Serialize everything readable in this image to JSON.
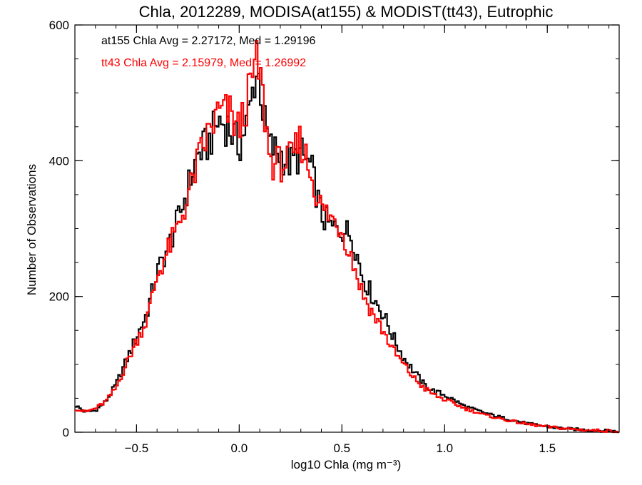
{
  "chart_data": {
    "type": "line",
    "title": "Chla, 2012289, MODISA(at155) & MODIST(tt43), Eutrophic",
    "xlabel": "log10 Chla (mg m⁻³)",
    "ylabel": "Number of Observations",
    "xlim": [
      -0.8,
      1.85
    ],
    "ylim": [
      0,
      600
    ],
    "xticks": [
      -0.5,
      0.0,
      0.5,
      1.0,
      1.5
    ],
    "xtick_labels": [
      "−0.5",
      "0.0",
      "0.5",
      "1.0",
      "1.5"
    ],
    "yticks": [
      0,
      200,
      400,
      600
    ],
    "ytick_labels": [
      "0",
      "200",
      "400",
      "600"
    ],
    "grid": false,
    "legend_position": "top-left",
    "annotations": [
      {
        "text": "at155 Chla Avg = 2.27172, Med = 1.29196",
        "color": "#000000"
      },
      {
        "text": "tt43 Chla Avg = 2.15979, Med = 1.26992",
        "color": "#ff0000"
      }
    ],
    "series": [
      {
        "color": "#000000",
        "x": [
          -0.8,
          -0.75,
          -0.7,
          -0.65,
          -0.6,
          -0.55,
          -0.5,
          -0.45,
          -0.4,
          -0.35,
          -0.3,
          -0.25,
          -0.2,
          -0.15,
          -0.1,
          -0.05,
          0.0,
          0.05,
          0.08,
          0.1,
          0.12,
          0.15,
          0.2,
          0.25,
          0.3,
          0.35,
          0.4,
          0.45,
          0.5,
          0.55,
          0.6,
          0.65,
          0.7,
          0.75,
          0.8,
          0.85,
          0.9,
          0.95,
          1.0,
          1.1,
          1.2,
          1.3,
          1.4,
          1.5,
          1.6,
          1.7,
          1.8,
          1.85
        ],
        "values": [
          40,
          30,
          32,
          45,
          70,
          105,
          140,
          175,
          235,
          270,
          310,
          360,
          410,
          425,
          460,
          450,
          420,
          470,
          530,
          520,
          460,
          420,
          410,
          395,
          410,
          390,
          320,
          300,
          300,
          290,
          230,
          200,
          175,
          140,
          110,
          90,
          70,
          60,
          55,
          38,
          28,
          20,
          13,
          8,
          5,
          3,
          2,
          1
        ]
      },
      {
        "color": "#ff0000",
        "x": [
          -0.8,
          -0.75,
          -0.7,
          -0.65,
          -0.6,
          -0.55,
          -0.5,
          -0.45,
          -0.4,
          -0.35,
          -0.3,
          -0.25,
          -0.2,
          -0.15,
          -0.1,
          -0.05,
          0.0,
          0.05,
          0.08,
          0.1,
          0.12,
          0.15,
          0.2,
          0.25,
          0.3,
          0.35,
          0.4,
          0.45,
          0.5,
          0.55,
          0.6,
          0.65,
          0.7,
          0.75,
          0.8,
          0.85,
          0.9,
          0.95,
          1.0,
          1.1,
          1.2,
          1.3,
          1.4,
          1.5,
          1.6,
          1.7,
          1.8,
          1.85
        ],
        "values": [
          35,
          30,
          35,
          45,
          65,
          100,
          135,
          165,
          230,
          265,
          300,
          345,
          400,
          440,
          470,
          470,
          445,
          500,
          545,
          530,
          480,
          400,
          395,
          400,
          430,
          380,
          330,
          315,
          300,
          255,
          205,
          175,
          150,
          120,
          100,
          80,
          65,
          55,
          48,
          35,
          25,
          18,
          12,
          8,
          5,
          3,
          2,
          1
        ]
      }
    ]
  }
}
